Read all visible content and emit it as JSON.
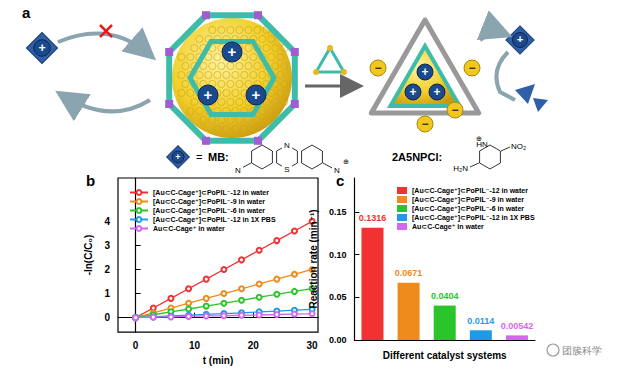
{
  "panel_labels": [
    "a",
    "b",
    "c"
  ],
  "watermark": "团簇科学",
  "diagram": {
    "cation": "+",
    "anion": "−",
    "equals": "=",
    "mb_label": "MB:",
    "mb_atoms": [
      "N",
      "S",
      "N",
      "N"
    ],
    "mb_charge": "⊕",
    "np_label": "2A5NPCl:",
    "np_atoms": [
      "H₂N",
      "HN",
      "NO₂"
    ],
    "np_charge": "⊕"
  },
  "chart_data": [
    {
      "type": "line",
      "x_label": "t (min)",
      "y_label": "-ln(C/C₀)",
      "x": [
        0,
        3,
        6,
        9,
        12,
        15,
        18,
        21,
        24,
        27,
        30
      ],
      "series": [
        {
          "name": "[Au⊂C-Cage⁺]⊂PoPIL⁻-12 in water",
          "color": "#f03232",
          "values": [
            0,
            0.4,
            0.8,
            1.2,
            1.6,
            2.0,
            2.4,
            2.8,
            3.2,
            3.6,
            4.0
          ]
        },
        {
          "name": "[Au⊂C-Cage⁺]⊂PoPIL⁻-9 in water",
          "color": "#ef8a1d",
          "values": [
            0,
            0.2,
            0.4,
            0.6,
            0.8,
            1.0,
            1.2,
            1.4,
            1.6,
            1.8,
            2.0
          ]
        },
        {
          "name": "[Au⊂C-Cage⁺]⊂PoPIL⁻-6 in water",
          "color": "#2bc42b",
          "values": [
            0,
            0.12,
            0.24,
            0.36,
            0.48,
            0.6,
            0.72,
            0.85,
            0.97,
            1.09,
            1.21
          ]
        },
        {
          "name": "[Au⊂C-Cage⁺]⊂PoPIL⁻-12 in 1X PBS",
          "color": "#1f9ae6",
          "values": [
            0,
            0.03,
            0.07,
            0.1,
            0.14,
            0.17,
            0.2,
            0.24,
            0.27,
            0.31,
            0.34
          ]
        },
        {
          "name": "Au⊂C-Cage⁺ in water",
          "color": "#d566f0",
          "values": [
            0,
            0.02,
            0.03,
            0.05,
            0.07,
            0.08,
            0.1,
            0.11,
            0.13,
            0.15,
            0.16
          ]
        }
      ],
      "xlim": [
        -3,
        31
      ],
      "xticks": [
        0,
        10,
        20,
        30
      ],
      "ylim": [
        -0.6,
        5.8
      ],
      "yticks": [
        0,
        1,
        2,
        3,
        4
      ],
      "marker": "open_circle",
      "legend": "upper left",
      "grid": false
    },
    {
      "type": "bar",
      "x_label": "Different catalyst systems",
      "y_label": "Reaction rate (min⁻¹)",
      "categories": [
        "[Au⊂C-Cage⁺]⊂PoPIL⁻-12 in water",
        "[Au⊂C-Cage⁺]⊂PoPIL⁻-9 in water",
        "[Au⊂C-Cage⁺]⊂PoPIL⁻-6 in water",
        "[Au⊂C-Cage⁺]⊂PoPIL⁻-12 in 1X PBS",
        "Au⊂C-Cage⁺ in water"
      ],
      "values": [
        0.1316,
        0.0671,
        0.0404,
        0.0114,
        0.00542
      ],
      "colors": [
        "#f03232",
        "#ef8a1d",
        "#2bc42b",
        "#1f9ae6",
        "#d566f0"
      ],
      "ylim": [
        0,
        0.19
      ],
      "yticks": [
        {
          "value": 0,
          "label": "0.00"
        },
        {
          "value": 0.05,
          "label": "0.05"
        },
        {
          "value": 0.1,
          "label": "0.10"
        },
        {
          "value": 0.15,
          "label": "0.15"
        }
      ],
      "data_labels": true,
      "tick_labels": "y",
      "legend": "upper right",
      "grid": false
    }
  ]
}
